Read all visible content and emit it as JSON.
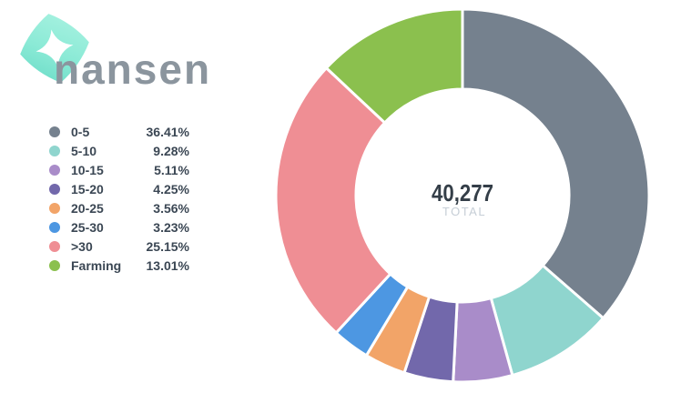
{
  "logo": {
    "brand": "nansen",
    "icon_color_light": "#A9F2E1",
    "icon_color_dark": "#6BDCC7",
    "wordmark_color": "#8B959E"
  },
  "chart_data": {
    "type": "pie",
    "subtype": "donut",
    "categories": [
      "0-5",
      "5-10",
      "10-15",
      "15-20",
      "20-25",
      "25-30",
      ">30",
      "Farming"
    ],
    "values": [
      36.41,
      9.28,
      5.11,
      4.25,
      3.56,
      3.23,
      25.15,
      13.01
    ],
    "percent_labels": [
      "36.41%",
      "9.28%",
      "5.11%",
      "4.25%",
      "3.56%",
      "3.23%",
      "25.15%",
      "13.01%"
    ],
    "colors": [
      "#75818E",
      "#8FD5CE",
      "#A98CC9",
      "#7268AB",
      "#F2A468",
      "#4D97E2",
      "#EF8E94",
      "#8BC04E"
    ],
    "center": {
      "total": "40,277",
      "label": "TOTAL"
    },
    "start_angle_deg": 0,
    "direction": "clockwise",
    "legend_position": "left",
    "slice_border_color": "#FFFFFF",
    "text_color": "#3B4754"
  }
}
